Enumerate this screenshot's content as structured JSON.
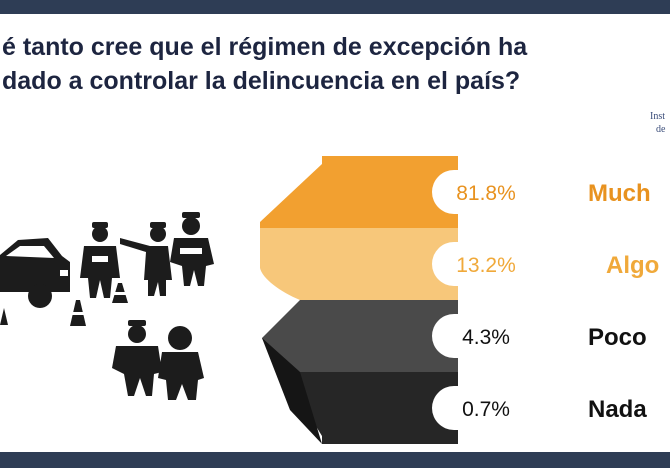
{
  "question": {
    "line1": "é tanto cree que el régimen de excepción ha",
    "line2": "dado a controlar la delincuencia en el país?"
  },
  "source": {
    "line1": "Inst",
    "line2": "de"
  },
  "colors": {
    "dark_band": "#2e3d55",
    "title": "#1d2540",
    "source": "#3b4d7a"
  },
  "chart_data": {
    "type": "bar",
    "categories": [
      "Mucho",
      "Algo",
      "Poco",
      "Nada"
    ],
    "category_labels_visible": [
      "Much",
      "Algo",
      "Poco",
      "Nada"
    ],
    "values": [
      81.8,
      13.2,
      4.3,
      0.7
    ],
    "value_labels": [
      "81.8%",
      "13.2%",
      "4.3%",
      "0.7%"
    ],
    "colors": [
      "#f2a030",
      "#f7c77a",
      "#4a4a4a",
      "#262626"
    ],
    "label_colors": [
      "#e8921f",
      "#f0a93a",
      "#111111",
      "#111111"
    ],
    "unit": "%"
  },
  "illustration": {
    "description_icons": [
      "car-icon",
      "police-officer-icon",
      "traffic-cone-icon",
      "arrested-person-icon"
    ]
  }
}
